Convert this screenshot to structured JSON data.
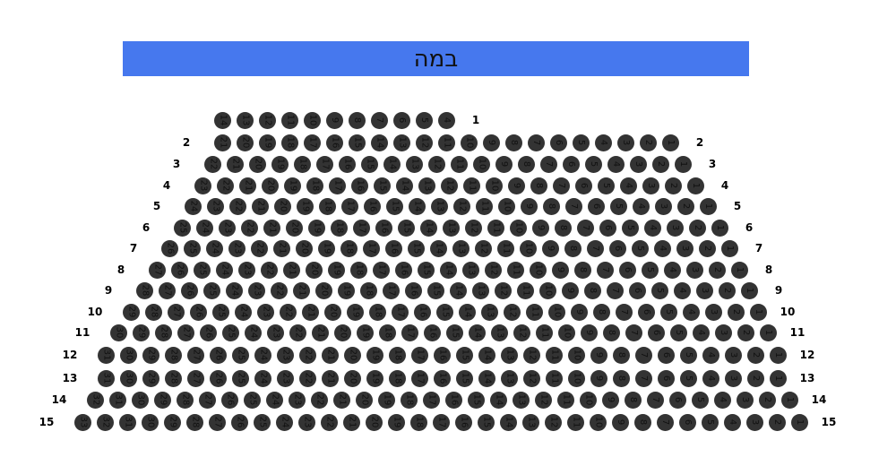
{
  "stage": {
    "label": "במה",
    "color": "#4678ee"
  },
  "seat_color": "#333333",
  "rows": [
    {
      "label": "1",
      "first_seat": 4,
      "last_seat": 14,
      "left_label": false
    },
    {
      "label": "2",
      "first_seat": 1,
      "last_seat": 21,
      "left_label": true
    },
    {
      "label": "3",
      "first_seat": 1,
      "last_seat": 22,
      "left_label": true
    },
    {
      "label": "4",
      "first_seat": 1,
      "last_seat": 23,
      "left_label": true
    },
    {
      "label": "5",
      "first_seat": 1,
      "last_seat": 24,
      "left_label": true
    },
    {
      "label": "6",
      "first_seat": 1,
      "last_seat": 25,
      "left_label": true
    },
    {
      "label": "7",
      "first_seat": 1,
      "last_seat": 26,
      "left_label": true
    },
    {
      "label": "8",
      "first_seat": 1,
      "last_seat": 27,
      "left_label": true
    },
    {
      "label": "9",
      "first_seat": 1,
      "last_seat": 28,
      "left_label": true
    },
    {
      "label": "10",
      "first_seat": 1,
      "last_seat": 29,
      "left_label": true
    },
    {
      "label": "11",
      "first_seat": 1,
      "last_seat": 30,
      "left_label": true
    },
    {
      "label": "12",
      "first_seat": 1,
      "last_seat": 31,
      "left_label": true
    },
    {
      "label": "13",
      "first_seat": 1,
      "last_seat": 31,
      "left_label": true
    },
    {
      "label": "14",
      "first_seat": 1,
      "last_seat": 32,
      "left_label": true
    },
    {
      "label": "15",
      "first_seat": 1,
      "last_seat": 33,
      "left_label": true
    }
  ]
}
